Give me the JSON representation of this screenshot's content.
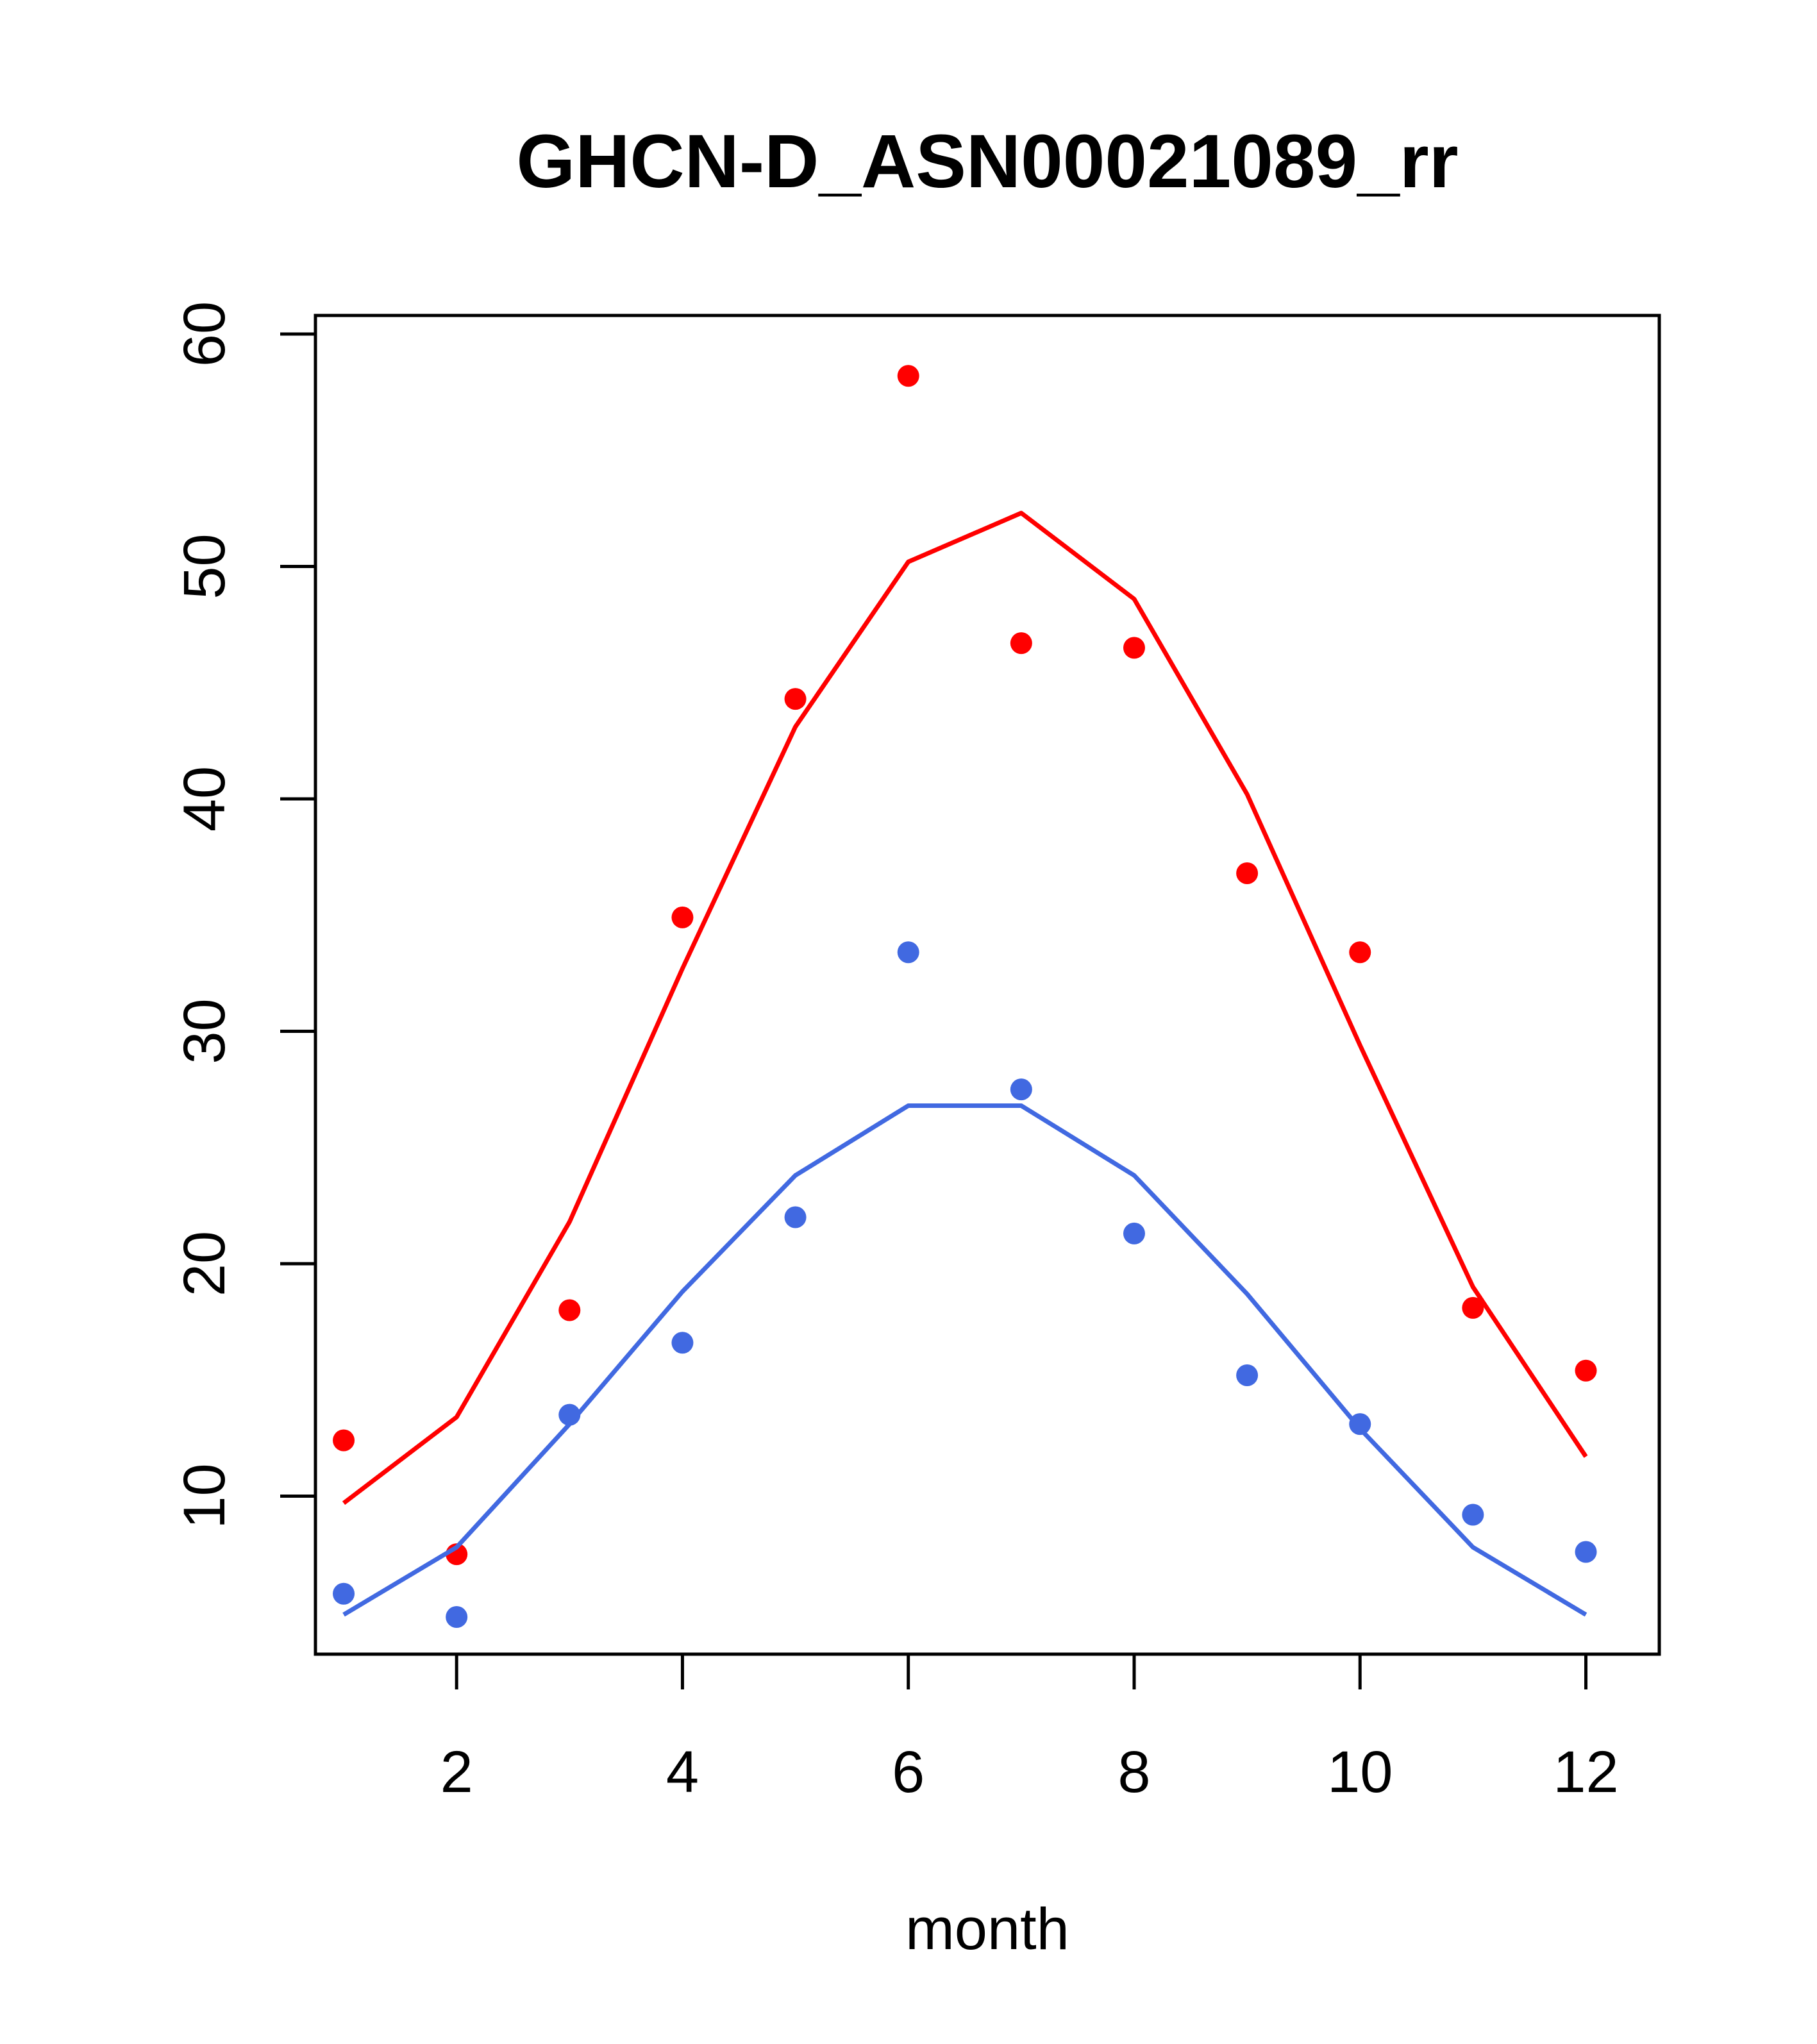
{
  "chart_data": {
    "type": "scatter",
    "title": "GHCN-D_ASN00021089_rr",
    "xlabel": "month",
    "ylabel": "",
    "xlim": [
      0.75,
      12.65
    ],
    "ylim": [
      3.2,
      60.8
    ],
    "x_ticks": [
      2,
      4,
      6,
      8,
      10,
      12
    ],
    "y_ticks": [
      10,
      20,
      30,
      40,
      50,
      60
    ],
    "grid": false,
    "legend": "none",
    "x": [
      1,
      2,
      3,
      4,
      5,
      6,
      7,
      8,
      9,
      10,
      11,
      12
    ],
    "series": [
      {
        "color": "#ff0000",
        "points": [
          12.4,
          7.5,
          18.0,
          34.9,
          44.3,
          58.2,
          46.7,
          46.5,
          36.8,
          33.4,
          18.1,
          15.4
        ],
        "line": [
          9.7,
          13.4,
          21.8,
          32.7,
          43.1,
          50.2,
          52.3,
          48.6,
          40.2,
          29.4,
          19.0,
          11.7
        ]
      },
      {
        "color": "#4169e1",
        "points": [
          5.8,
          4.8,
          13.5,
          16.6,
          22.0,
          33.4,
          27.5,
          21.3,
          15.2,
          13.1,
          9.2,
          7.6
        ],
        "line": [
          4.9,
          7.8,
          13.1,
          18.8,
          23.8,
          26.8,
          26.8,
          23.8,
          18.7,
          12.9,
          7.8,
          4.9
        ]
      }
    ]
  }
}
